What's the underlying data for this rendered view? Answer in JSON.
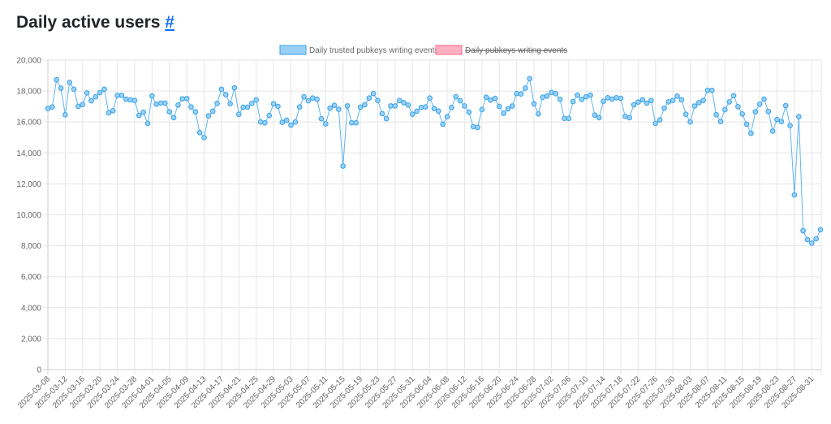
{
  "header": {
    "title": "Daily active users",
    "anchor": "#"
  },
  "colors": {
    "series1": "#36a2eb",
    "series1_fill": "#9ad0f5",
    "series2": "#ff6384",
    "series2_fill": "#ffb1c1"
  },
  "chart_data": {
    "type": "line",
    "title": "",
    "xlabel": "",
    "ylabel": "",
    "ylim": [
      0,
      20000
    ],
    "y_ticks": [
      "0",
      "2,000",
      "4,000",
      "6,000",
      "8,000",
      "10,000",
      "12,000",
      "14,000",
      "16,000",
      "18,000",
      "20,000"
    ],
    "grid": true,
    "legend_position": "top",
    "legend": [
      {
        "label": "Daily trusted pubkeys writing events",
        "hidden": false
      },
      {
        "label": "Daily pubkeys writing events",
        "hidden": true
      }
    ],
    "x_tick_every": 4,
    "categories": [
      "2025-03-08",
      "2025-03-09",
      "2025-03-10",
      "2025-03-11",
      "2025-03-12",
      "2025-03-13",
      "2025-03-14",
      "2025-03-15",
      "2025-03-16",
      "2025-03-17",
      "2025-03-18",
      "2025-03-19",
      "2025-03-20",
      "2025-03-21",
      "2025-03-22",
      "2025-03-23",
      "2025-03-24",
      "2025-03-25",
      "2025-03-26",
      "2025-03-27",
      "2025-03-28",
      "2025-03-29",
      "2025-03-30",
      "2025-03-31",
      "2025-04-01",
      "2025-04-02",
      "2025-04-03",
      "2025-04-04",
      "2025-04-05",
      "2025-04-06",
      "2025-04-07",
      "2025-04-08",
      "2025-04-09",
      "2025-04-10",
      "2025-04-11",
      "2025-04-12",
      "2025-04-13",
      "2025-04-14",
      "2025-04-15",
      "2025-04-16",
      "2025-04-17",
      "2025-04-18",
      "2025-04-19",
      "2025-04-20",
      "2025-04-21",
      "2025-04-22",
      "2025-04-23",
      "2025-04-24",
      "2025-04-25",
      "2025-04-26",
      "2025-04-27",
      "2025-04-28",
      "2025-04-29",
      "2025-04-30",
      "2025-05-01",
      "2025-05-02",
      "2025-05-03",
      "2025-05-04",
      "2025-05-05",
      "2025-05-06",
      "2025-05-07",
      "2025-05-08",
      "2025-05-09",
      "2025-05-10",
      "2025-05-11",
      "2025-05-12",
      "2025-05-13",
      "2025-05-14",
      "2025-05-15",
      "2025-05-16",
      "2025-05-17",
      "2025-05-18",
      "2025-05-19",
      "2025-05-20",
      "2025-05-21",
      "2025-05-22",
      "2025-05-23",
      "2025-05-24",
      "2025-05-25",
      "2025-05-26",
      "2025-05-27",
      "2025-05-28",
      "2025-05-29",
      "2025-05-30",
      "2025-05-31",
      "2025-06-01",
      "2025-06-02",
      "2025-06-03",
      "2025-06-04",
      "2025-06-05",
      "2025-06-06",
      "2025-06-07",
      "2025-06-08",
      "2025-06-09",
      "2025-06-10",
      "2025-06-11",
      "2025-06-12",
      "2025-06-13",
      "2025-06-14",
      "2025-06-15",
      "2025-06-16",
      "2025-06-17",
      "2025-06-18",
      "2025-06-19",
      "2025-06-20",
      "2025-06-21",
      "2025-06-22",
      "2025-06-23",
      "2025-06-24",
      "2025-06-25",
      "2025-06-26",
      "2025-06-27",
      "2025-06-28",
      "2025-06-29",
      "2025-06-30",
      "2025-07-01",
      "2025-07-02",
      "2025-07-03",
      "2025-07-04",
      "2025-07-05",
      "2025-07-06",
      "2025-07-07",
      "2025-07-08",
      "2025-07-09",
      "2025-07-10",
      "2025-07-11",
      "2025-07-12",
      "2025-07-13",
      "2025-07-14",
      "2025-07-15",
      "2025-07-16",
      "2025-07-17",
      "2025-07-18",
      "2025-07-19",
      "2025-07-20",
      "2025-07-21",
      "2025-07-22",
      "2025-07-23",
      "2025-07-24",
      "2025-07-25",
      "2025-07-26",
      "2025-07-27",
      "2025-07-28",
      "2025-07-29",
      "2025-07-30",
      "2025-07-31",
      "2025-08-01",
      "2025-08-02",
      "2025-08-03",
      "2025-08-04",
      "2025-08-05",
      "2025-08-06",
      "2025-08-07",
      "2025-08-08",
      "2025-08-09",
      "2025-08-10",
      "2025-08-11",
      "2025-08-12",
      "2025-08-13",
      "2025-08-14",
      "2025-08-15",
      "2025-08-16",
      "2025-08-17",
      "2025-08-18",
      "2025-08-19",
      "2025-08-20",
      "2025-08-21",
      "2025-08-22",
      "2025-08-23",
      "2025-08-24",
      "2025-08-25",
      "2025-08-26",
      "2025-08-27",
      "2025-08-28",
      "2025-08-29",
      "2025-08-30",
      "2025-08-31",
      "2025-09-01",
      "2025-09-02"
    ],
    "series": [
      {
        "name": "Daily trusted pubkeys writing events",
        "values": [
          16870,
          16970,
          18730,
          18190,
          16470,
          18560,
          18120,
          17010,
          17130,
          17880,
          17370,
          17630,
          17900,
          18120,
          16590,
          16730,
          17720,
          17720,
          17480,
          17430,
          17390,
          16430,
          16630,
          15910,
          17690,
          17150,
          17220,
          17220,
          16660,
          16280,
          17100,
          17500,
          17510,
          16970,
          16660,
          15320,
          14990,
          16400,
          16700,
          17200,
          18120,
          17770,
          17180,
          18210,
          16500,
          16960,
          16960,
          17200,
          17430,
          16000,
          15950,
          16420,
          17180,
          17010,
          15980,
          16120,
          15790,
          16000,
          16970,
          17630,
          17370,
          17550,
          17480,
          16210,
          15880,
          16900,
          17080,
          16820,
          13150,
          17040,
          15950,
          15950,
          16960,
          17110,
          17550,
          17840,
          17390,
          16540,
          16210,
          17040,
          17040,
          17390,
          17250,
          17100,
          16500,
          16700,
          16940,
          16970,
          17550,
          16870,
          16710,
          15860,
          16350,
          16940,
          17630,
          17370,
          17040,
          16640,
          15700,
          15650,
          16800,
          17600,
          17410,
          17530,
          17010,
          16560,
          16850,
          17030,
          17840,
          17810,
          18190,
          18800,
          17180,
          16520,
          17600,
          17670,
          17910,
          17830,
          17460,
          16230,
          16230,
          17320,
          17740,
          17460,
          17630,
          17740,
          16450,
          16280,
          17340,
          17570,
          17480,
          17570,
          17530,
          16370,
          16280,
          17110,
          17290,
          17440,
          17220,
          17390,
          15910,
          16140,
          16890,
          17300,
          17390,
          17670,
          17440,
          16500,
          16000,
          17030,
          17250,
          17390,
          18050,
          18050,
          16470,
          16030,
          16800,
          17300,
          17700,
          16990,
          16520,
          15860,
          15270,
          16660,
          17150,
          17480,
          16680,
          15410,
          16160,
          16030,
          17060,
          15770,
          11290,
          16350,
          8970,
          8400,
          8170,
          8450,
          9040
        ]
      }
    ]
  }
}
